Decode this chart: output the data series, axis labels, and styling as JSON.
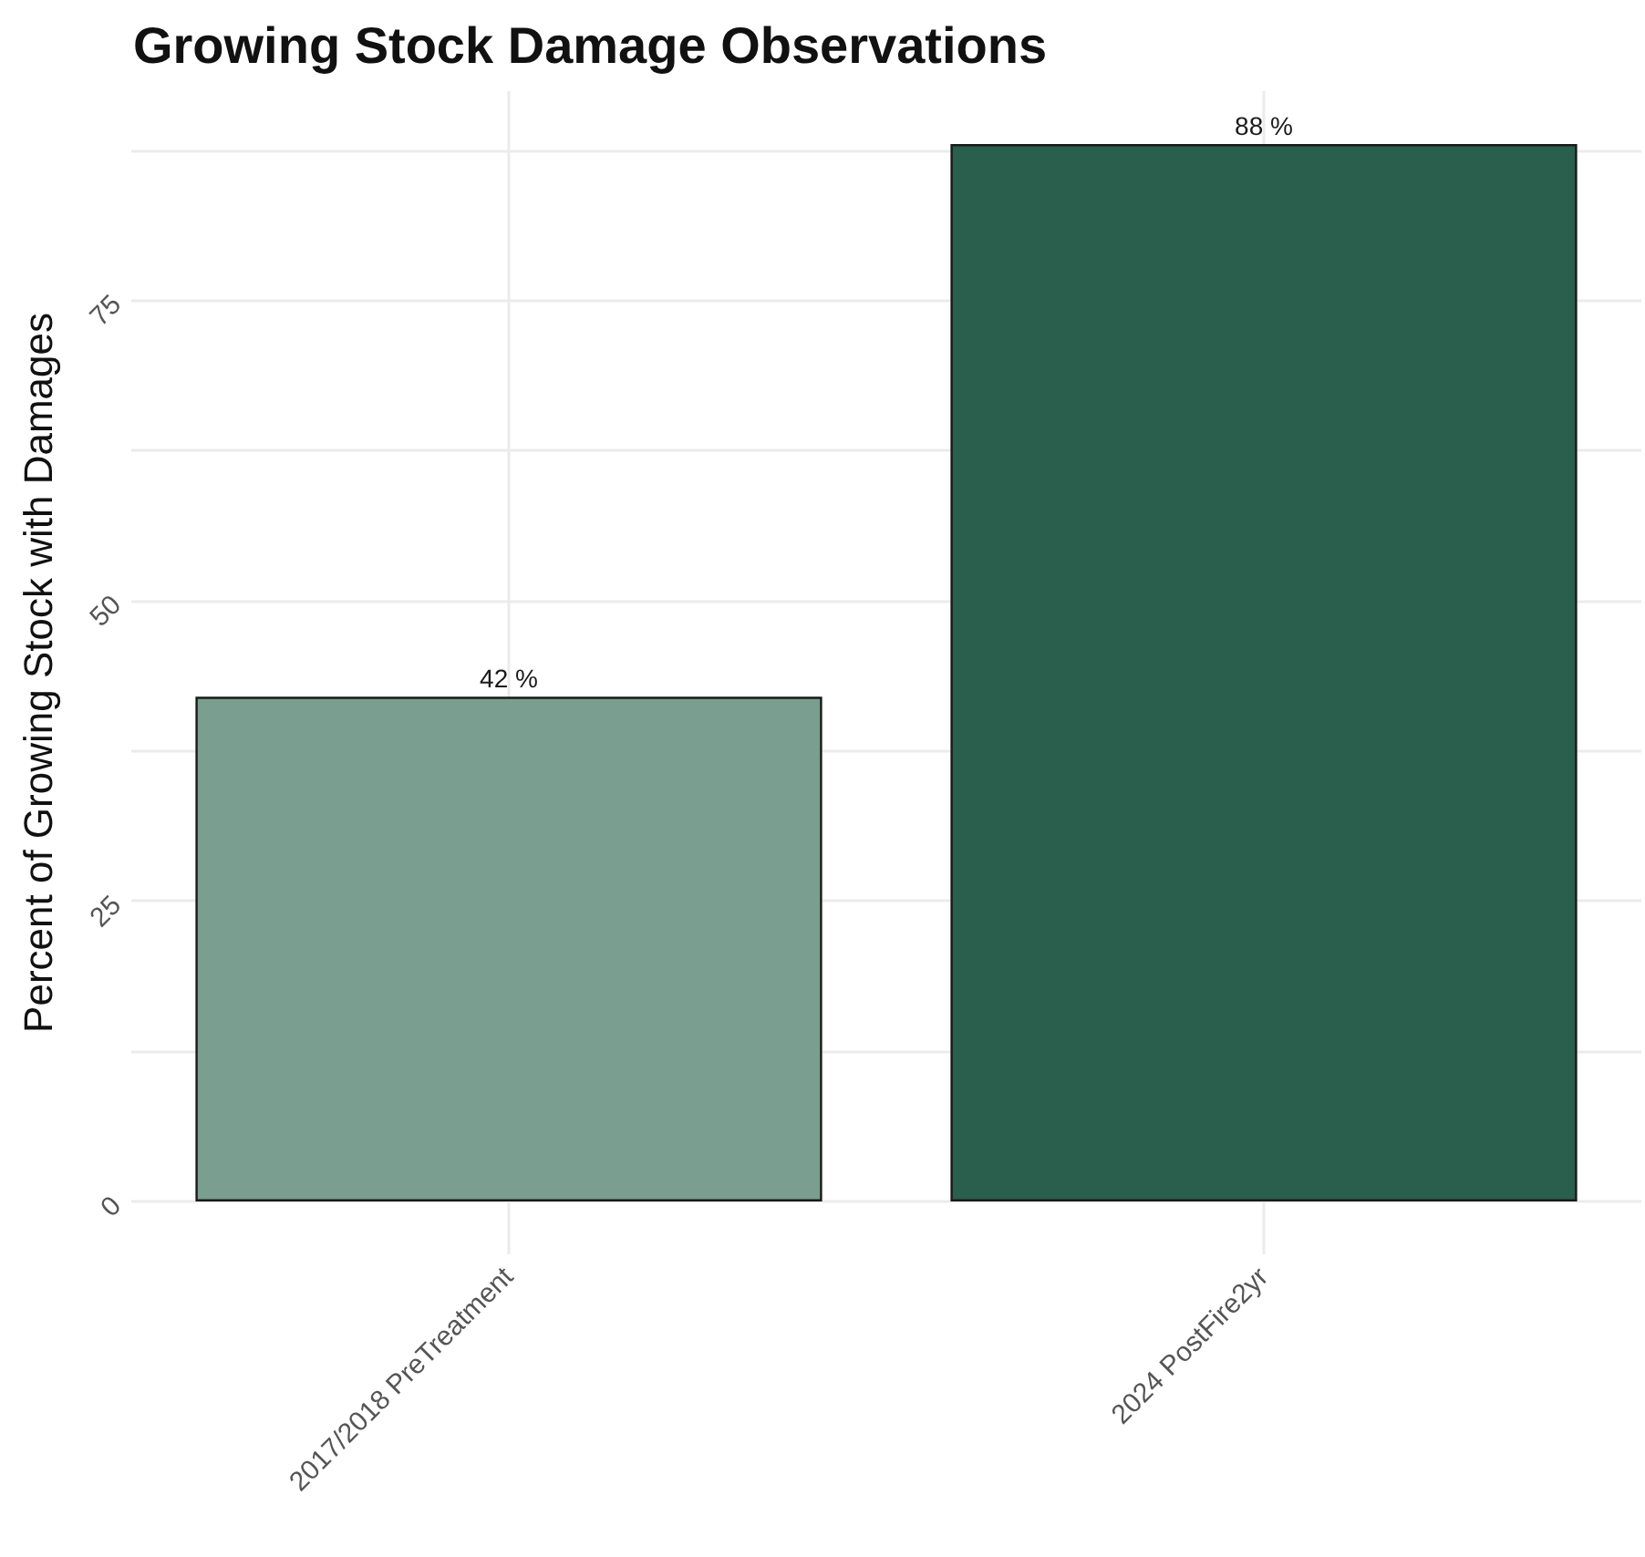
{
  "chart_data": {
    "type": "bar",
    "title": "Growing Stock Damage Observations",
    "ylabel": "Percent of Growing Stock with Damages",
    "categories": [
      "2017/2018 PreTreatment",
      "2024 PostFire2yr"
    ],
    "values": [
      42,
      88
    ],
    "colors": [
      "#7a9e8f",
      "#2a5e4d"
    ],
    "value_labels": [
      "42 %",
      "88 %"
    ],
    "ylim": [
      -4.4,
      92.4
    ],
    "yticks": [
      0,
      {
        "value": 12.5,
        "label": null
      },
      25,
      {
        "value": 37.5,
        "label": null
      },
      50,
      {
        "value": 62.5,
        "label": null
      },
      75,
      {
        "value": 87.5,
        "label": null
      }
    ],
    "grid": true
  }
}
